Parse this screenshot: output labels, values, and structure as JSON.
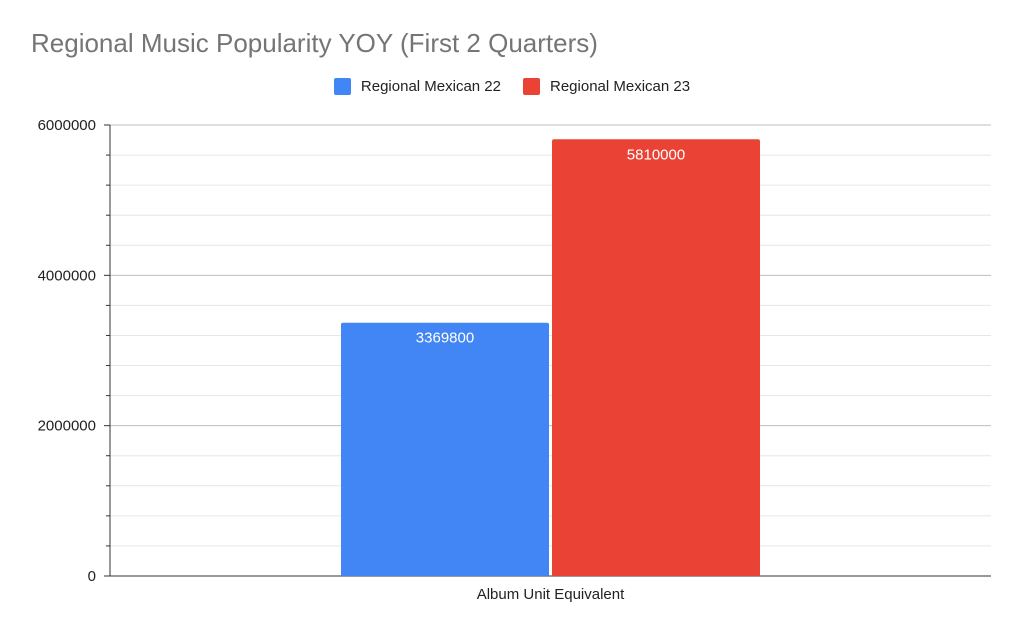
{
  "chart_data": {
    "type": "bar",
    "title": "Regional Music Popularity YOY (First 2 Quarters)",
    "categories": [
      "Album Unit Equivalent"
    ],
    "series": [
      {
        "name": "Regional Mexican 22",
        "color": "#4285F4",
        "values": [
          3369800
        ]
      },
      {
        "name": "Regional Mexican 23",
        "color": "#EA4335",
        "values": [
          5810000
        ]
      }
    ],
    "data_labels": [
      "3369800",
      "5810000"
    ],
    "yticks": [
      "0",
      "2000000",
      "4000000",
      "6000000"
    ],
    "ylim": [
      0,
      6000000
    ],
    "xlabel": "",
    "ylabel": "",
    "grid": true,
    "legend_position": "top"
  }
}
